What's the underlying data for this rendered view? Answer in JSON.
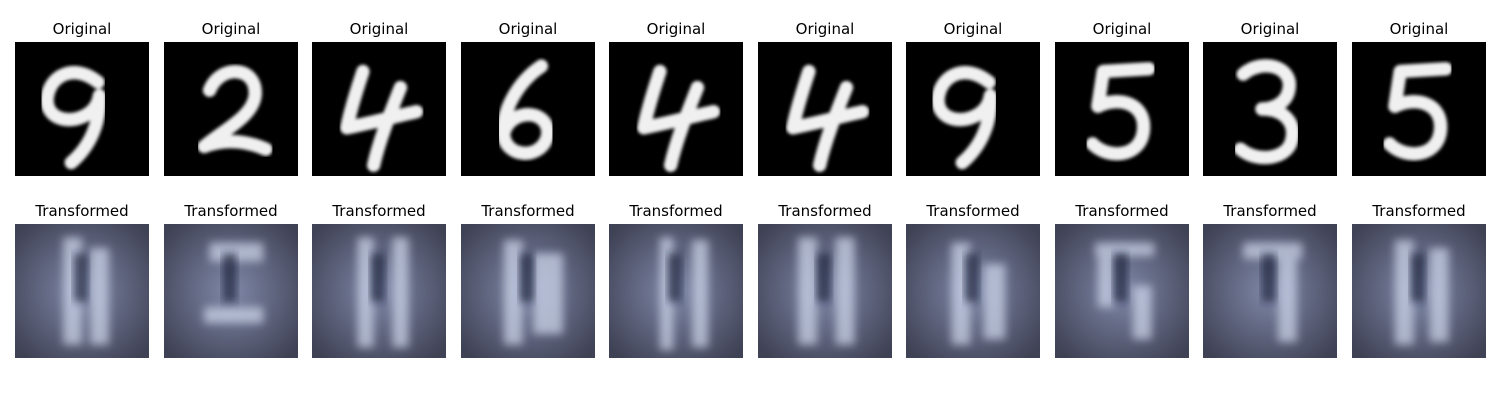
{
  "figure": {
    "rows": [
      {
        "name": "original",
        "panels": [
          {
            "title": "Original",
            "digit": "9"
          },
          {
            "title": "Original",
            "digit": "2"
          },
          {
            "title": "Original",
            "digit": "4"
          },
          {
            "title": "Original",
            "digit": "6"
          },
          {
            "title": "Original",
            "digit": "4"
          },
          {
            "title": "Original",
            "digit": "4"
          },
          {
            "title": "Original",
            "digit": "9"
          },
          {
            "title": "Original",
            "digit": "5"
          },
          {
            "title": "Original",
            "digit": "3"
          },
          {
            "title": "Original",
            "digit": "5"
          }
        ]
      },
      {
        "name": "transformed",
        "panels": [
          {
            "title": "Transformed"
          },
          {
            "title": "Transformed"
          },
          {
            "title": "Transformed"
          },
          {
            "title": "Transformed"
          },
          {
            "title": "Transformed"
          },
          {
            "title": "Transformed"
          },
          {
            "title": "Transformed"
          },
          {
            "title": "Transformed"
          },
          {
            "title": "Transformed"
          },
          {
            "title": "Transformed"
          }
        ]
      }
    ],
    "colors": {
      "original_background": "#000000",
      "original_stroke": "#f0f0f0",
      "transformed_background": "#3f4154",
      "transformed_highlight": "#c9d2e6",
      "transformed_shadow": "#141a34",
      "transformed_tint": "#7f88a8"
    }
  }
}
